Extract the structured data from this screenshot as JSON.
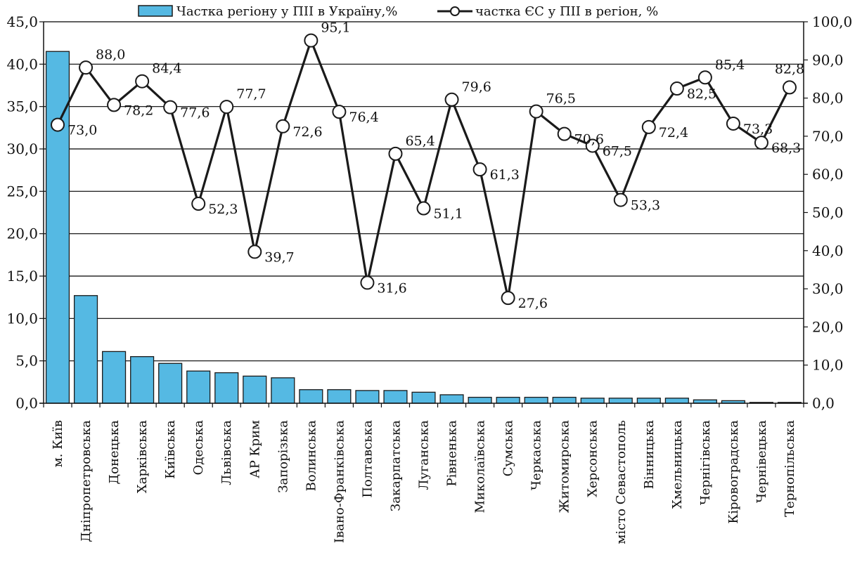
{
  "colors": {
    "bar_fill": "#55b9e3",
    "bar_stroke": "#1a1a1a",
    "line": "#1a1a1a",
    "marker_fill": "#ffffff",
    "grid": "#000000"
  },
  "chart_data": {
    "type": "bar",
    "combo": "bar+line",
    "grid": true,
    "legend_position": "top",
    "categories": [
      "м. Київ",
      "Дніпропетровська",
      "Донецька",
      "Харківська",
      "Київська",
      "Одеська",
      "Львівська",
      "АР Крим",
      "Запорізька",
      "Волинська",
      "Івано-Франківська",
      "Полтавська",
      "Закарпатська",
      "Луганська",
      "Рівненька",
      "Миколаївська",
      "Сумська",
      "Черкаська",
      "Житомирська",
      "Херсонська",
      "місто Севастополь",
      "Вінницька",
      "Хмельницька",
      "Чернігівська",
      "Кіровоградська",
      "Чернівецька",
      "Тернопільська"
    ],
    "series": [
      {
        "name": "Частка регіону у ПІІ в Україну,%",
        "type": "bar",
        "axis": "left",
        "values": [
          41.5,
          12.7,
          6.1,
          5.5,
          4.7,
          3.8,
          3.6,
          3.2,
          3.0,
          1.6,
          1.6,
          1.5,
          1.5,
          1.3,
          1.0,
          0.7,
          0.7,
          0.7,
          0.7,
          0.6,
          0.6,
          0.6,
          0.6,
          0.4,
          0.3,
          0.1,
          0.1
        ]
      },
      {
        "name": "частка ЄС у ПІІ в регіон, %",
        "type": "line",
        "axis": "right",
        "values": [
          73.0,
          88.0,
          78.2,
          84.4,
          77.6,
          52.3,
          77.7,
          39.7,
          72.6,
          95.1,
          76.4,
          31.6,
          65.4,
          51.1,
          79.6,
          61.3,
          27.6,
          76.5,
          70.6,
          67.5,
          53.3,
          72.4,
          82.5,
          85.4,
          73.3,
          68.3,
          82.8
        ],
        "labels": [
          "73,0",
          "88,0",
          "78,2",
          "84,4",
          "77,6",
          "52,3",
          "77,7",
          "39,7",
          "72,6",
          "95,1",
          "76,4",
          "31,6",
          "65,4",
          "51,1",
          "79,6",
          "61,3",
          "27,6",
          "76,5",
          "70,6",
          "67,5",
          "53,3",
          "72,4",
          "82,5",
          "85,4",
          "73,3",
          "68,3",
          "82,8"
        ]
      }
    ],
    "y_left": {
      "range": [
        0,
        45
      ],
      "ticks": [
        0,
        5,
        10,
        15,
        20,
        25,
        30,
        35,
        40,
        45
      ],
      "tick_labels": [
        "0,0",
        "5,0",
        "10,0",
        "15,0",
        "20,0",
        "25,0",
        "30,0",
        "35,0",
        "40,0",
        "45,0"
      ]
    },
    "y_right": {
      "range": [
        0,
        100
      ],
      "ticks": [
        0,
        10,
        20,
        30,
        40,
        50,
        60,
        70,
        80,
        90,
        100
      ],
      "tick_labels": [
        "0,0",
        "10,0",
        "20,0",
        "30,0",
        "40,0",
        "50,0",
        "60,0",
        "70,0",
        "80,0",
        "90,0",
        "100,0"
      ]
    }
  }
}
